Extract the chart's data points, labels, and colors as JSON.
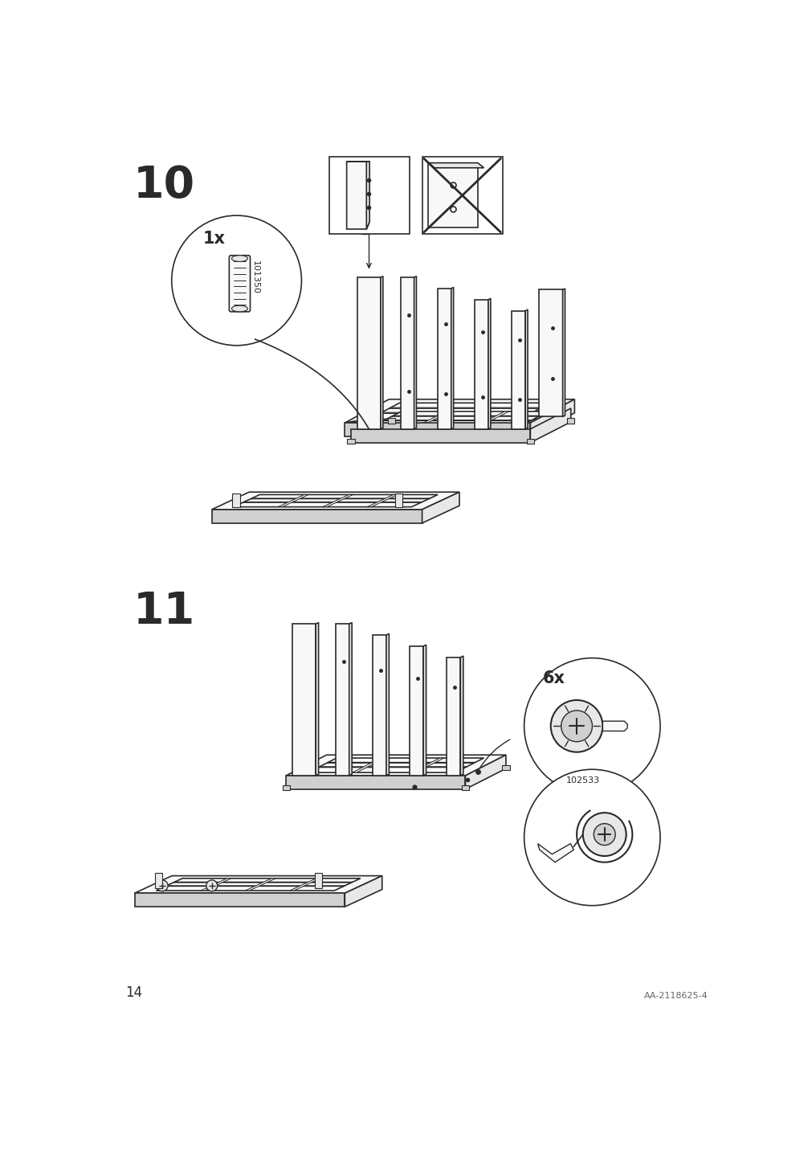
{
  "page_number": "14",
  "doc_number": "AA-2118625-4",
  "background_color": "#ffffff",
  "step10_label": "10",
  "step11_label": "11",
  "part_count_10": "1x",
  "part_code_10": "101350",
  "part_count_11": "6x",
  "part_code_11": "102533",
  "line_color": "#2a2a2a",
  "line_width": 1.2,
  "thick_line": 2.0,
  "step_label_fontsize": 40,
  "count_fontsize": 15,
  "code_fontsize": 8,
  "page_num_fontsize": 12,
  "doc_num_fontsize": 8,
  "face_light": "#f8f8f8",
  "face_mid": "#e8e8e8",
  "face_dark": "#d0d0d0"
}
